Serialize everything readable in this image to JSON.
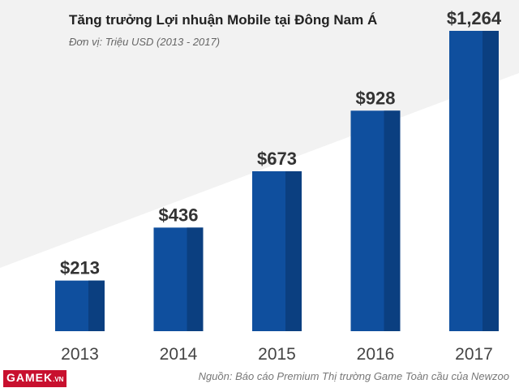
{
  "chart_data": {
    "type": "bar",
    "title": "Tăng trưởng Lợi nhuận Mobile tại Đông Nam Á",
    "subtitle": "Đơn vị: Triệu USD (2013 - 2017)",
    "categories": [
      "2013",
      "2014",
      "2015",
      "2016",
      "2017"
    ],
    "values": [
      213,
      436,
      673,
      928,
      1264
    ],
    "value_labels": [
      "$213",
      "$436",
      "$673",
      "$928",
      "$1,264"
    ],
    "ylim": [
      0,
      1264
    ],
    "grid": false,
    "bar_color": "#0f4f9e",
    "bar_shade_color": "#0b3f80"
  },
  "footer": {
    "source": "Nguồn: Báo cáo Premium Thị trường Game Toàn cầu của Newzoo",
    "logo_text": "GAMEK",
    "logo_suffix": ".VN"
  }
}
